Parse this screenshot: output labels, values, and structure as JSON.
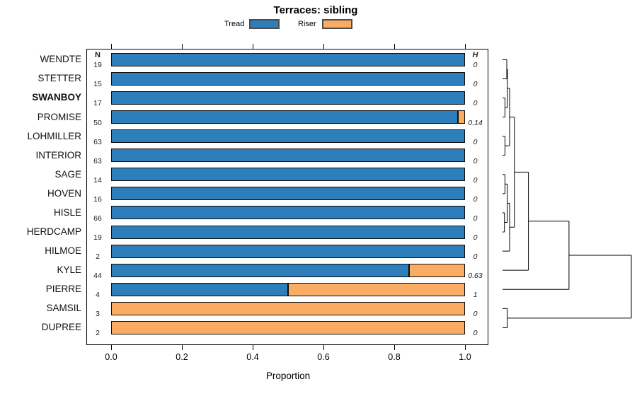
{
  "title": "Terraces: sibling",
  "legend": {
    "items": [
      {
        "label": "Tread",
        "color": "#2E7EBB"
      },
      {
        "label": "Riser",
        "color": "#FBAC63"
      }
    ]
  },
  "colors": {
    "tread": "#2E7EBB",
    "riser": "#FBAC63",
    "bar_border": "#0d0d0d",
    "dendro_line": "#000000"
  },
  "chart_data": {
    "type": "bar",
    "orientation": "horizontal",
    "stacked": true,
    "title": "Terraces: sibling",
    "xlabel": "Proportion",
    "xlim": [
      0.0,
      1.0
    ],
    "x_ticks": [
      "0.0",
      "0.2",
      "0.4",
      "0.6",
      "0.8",
      "1.0"
    ],
    "n_header": "N",
    "h_header": "H",
    "series_names": [
      "Tread",
      "Riser"
    ],
    "rows": [
      {
        "label": "WENDTE",
        "n": 19,
        "tread": 1.0,
        "riser": 0.0,
        "h": "0",
        "bold": false
      },
      {
        "label": "STETTER",
        "n": 15,
        "tread": 1.0,
        "riser": 0.0,
        "h": "0",
        "bold": false
      },
      {
        "label": "SWANBOY",
        "n": 17,
        "tread": 1.0,
        "riser": 0.0,
        "h": "0",
        "bold": true
      },
      {
        "label": "PROMISE",
        "n": 50,
        "tread": 0.98,
        "riser": 0.02,
        "h": "0.14",
        "bold": false
      },
      {
        "label": "LOHMILLER",
        "n": 63,
        "tread": 1.0,
        "riser": 0.0,
        "h": "0",
        "bold": false
      },
      {
        "label": "INTERIOR",
        "n": 63,
        "tread": 1.0,
        "riser": 0.0,
        "h": "0",
        "bold": false
      },
      {
        "label": "SAGE",
        "n": 14,
        "tread": 1.0,
        "riser": 0.0,
        "h": "0",
        "bold": false
      },
      {
        "label": "HOVEN",
        "n": 16,
        "tread": 1.0,
        "riser": 0.0,
        "h": "0",
        "bold": false
      },
      {
        "label": "HISLE",
        "n": 66,
        "tread": 1.0,
        "riser": 0.0,
        "h": "0",
        "bold": false
      },
      {
        "label": "HERDCAMP",
        "n": 19,
        "tread": 1.0,
        "riser": 0.0,
        "h": "0",
        "bold": false
      },
      {
        "label": "HILMOE",
        "n": 2,
        "tread": 1.0,
        "riser": 0.0,
        "h": "0",
        "bold": false
      },
      {
        "label": "KYLE",
        "n": 44,
        "tread": 0.841,
        "riser": 0.159,
        "h": "0.63",
        "bold": false
      },
      {
        "label": "PIERRE",
        "n": 4,
        "tread": 0.5,
        "riser": 0.5,
        "h": "1",
        "bold": false
      },
      {
        "label": "SAMSIL",
        "n": 3,
        "tread": 0.0,
        "riser": 1.0,
        "h": "0",
        "bold": false
      },
      {
        "label": "DUPREE",
        "n": 2,
        "tread": 0.0,
        "riser": 1.0,
        "h": "0",
        "bold": false
      }
    ],
    "dendrogram": {
      "merges": [
        {
          "id": "m1",
          "a": "WENDTE",
          "b": "STETTER",
          "h": 0.033
        },
        {
          "id": "m2",
          "a": "SWANBOY",
          "b": "PROMISE",
          "h": 0.019
        },
        {
          "id": "m3",
          "a": "m1",
          "b": "m2",
          "h": 0.038
        },
        {
          "id": "m4",
          "a": "LOHMILLER",
          "b": "INTERIOR",
          "h": 0.019
        },
        {
          "id": "m5",
          "a": "m3",
          "b": "m4",
          "h": 0.055
        },
        {
          "id": "m6",
          "a": "SAGE",
          "b": "HOVEN",
          "h": 0.019
        },
        {
          "id": "m7",
          "a": "HISLE",
          "b": "HERDCAMP",
          "h": 0.015
        },
        {
          "id": "m8",
          "a": "m6",
          "b": "m7",
          "h": 0.037
        },
        {
          "id": "m9",
          "a": "m8",
          "b": "HILMOE",
          "h": 0.055
        },
        {
          "id": "m10",
          "a": "m5",
          "b": "m9",
          "h": 0.092
        },
        {
          "id": "m11",
          "a": "m10",
          "b": "KYLE",
          "h": 0.201
        },
        {
          "id": "m12",
          "a": "m11",
          "b": "PIERRE",
          "h": 0.516
        },
        {
          "id": "m13",
          "a": "SAMSIL",
          "b": "DUPREE",
          "h": 0.037
        },
        {
          "id": "m14",
          "a": "m12",
          "b": "m13",
          "h": 1.0
        }
      ]
    }
  }
}
